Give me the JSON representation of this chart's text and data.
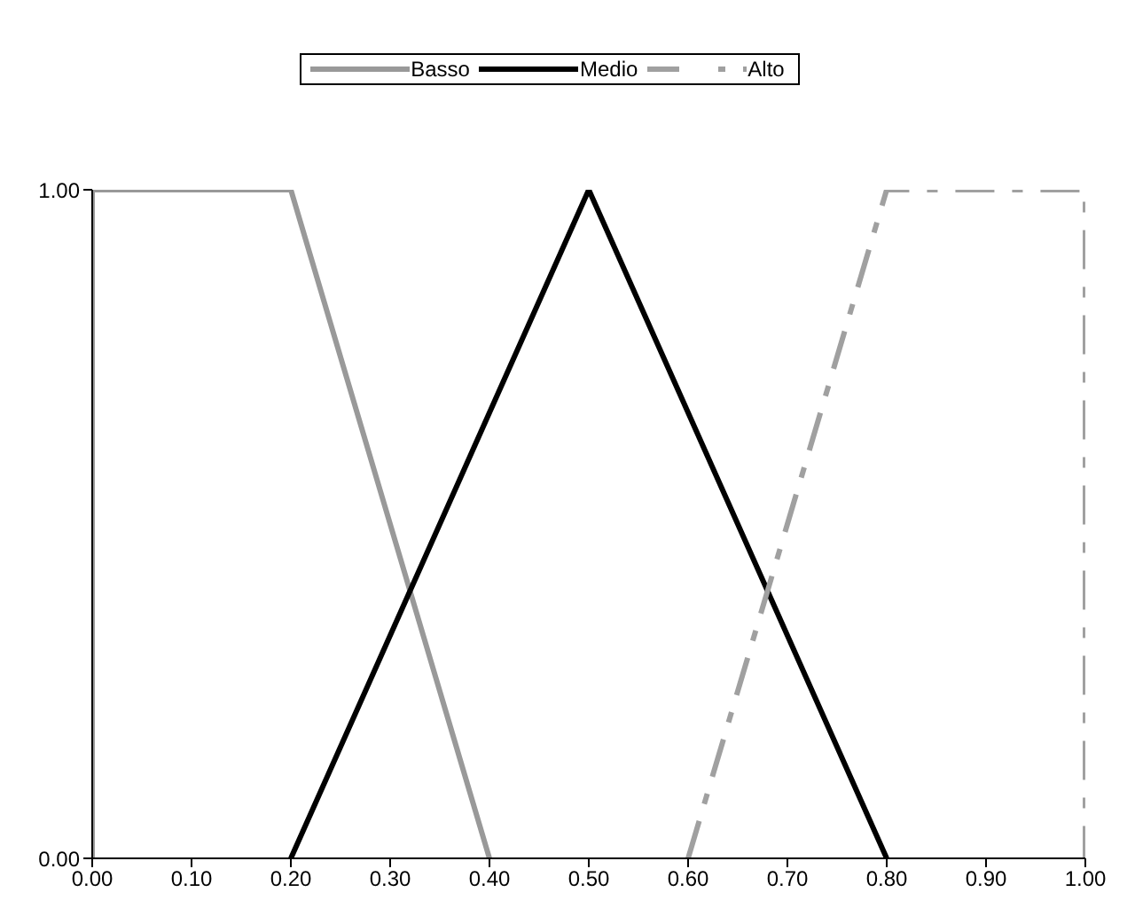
{
  "chart_data": {
    "type": "line",
    "xlim": [
      0,
      1
    ],
    "xticks": [
      {
        "value": 0,
        "label": "0.00"
      },
      {
        "value": 0.1,
        "label": "0.10"
      },
      {
        "value": 0.2,
        "label": "0.20"
      },
      {
        "value": 0.3,
        "label": "0.30"
      },
      {
        "value": 0.4,
        "label": "0.40"
      },
      {
        "value": 0.5,
        "label": "0.50"
      },
      {
        "value": 0.6,
        "label": "0.60"
      },
      {
        "value": 0.7,
        "label": "0.70"
      },
      {
        "value": 0.8,
        "label": "0.80"
      },
      {
        "value": 0.9,
        "label": "0.90"
      },
      {
        "value": 1,
        "label": "1.00"
      }
    ],
    "ylim": [
      0,
      1
    ],
    "yticks": [
      {
        "value": 0,
        "label": "0.00"
      },
      {
        "value": 1,
        "label": "1.00"
      }
    ],
    "series": [
      {
        "name": "Basso",
        "color": "#999999",
        "x": [
          0,
          0,
          0.2,
          0.4
        ],
        "values": [
          0,
          1,
          1,
          0
        ]
      },
      {
        "name": "Medio",
        "color": "#000000",
        "x": [
          0.2,
          0.5,
          0.8
        ],
        "values": [
          0,
          1,
          0
        ]
      },
      {
        "name": "Alto",
        "color": "#a0a0a0",
        "line_style": "dashed",
        "x": [
          0.6,
          0.8,
          1,
          1
        ],
        "values": [
          0,
          1,
          1,
          0
        ]
      }
    ],
    "grid": false,
    "legend": "top",
    "marker": "none"
  }
}
